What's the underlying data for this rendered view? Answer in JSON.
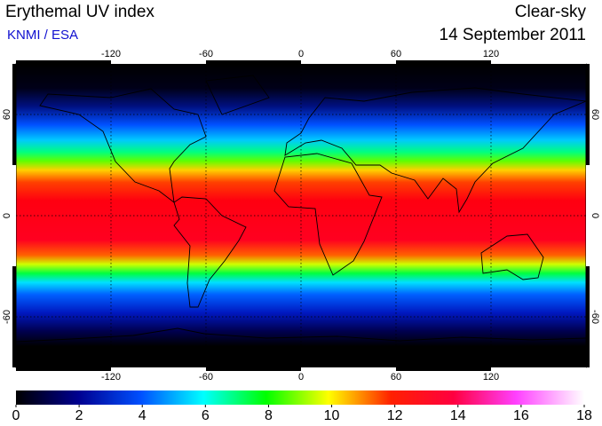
{
  "header": {
    "title": "Erythemal UV index",
    "source": "KNMI / ESA",
    "condition": "Clear-sky",
    "date": "14 September 2011"
  },
  "map": {
    "lonlim": [
      -180,
      180
    ],
    "latlim": [
      -90,
      90
    ],
    "lon_ticks": [
      -120,
      -60,
      0,
      60,
      120
    ],
    "lat_ticks": [
      60,
      0,
      -60
    ]
  },
  "colorbar": {
    "lim": [
      0,
      18
    ],
    "ticks": [
      0,
      2,
      4,
      6,
      8,
      10,
      12,
      14,
      16,
      18
    ]
  }
}
